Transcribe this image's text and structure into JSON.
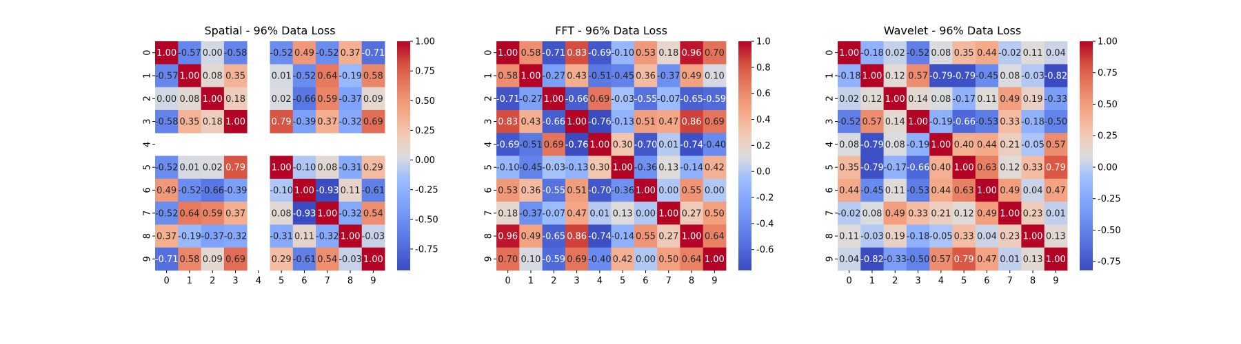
{
  "chart_data": [
    {
      "type": "heatmap",
      "title": "Spatial - 96% Data Loss",
      "xlabel": "",
      "ylabel": "",
      "x_ticks": [
        "0",
        "1",
        "2",
        "3",
        "4",
        "5",
        "6",
        "7",
        "8",
        "9"
      ],
      "y_ticks": [
        "0",
        "1",
        "2",
        "3",
        "4",
        "5",
        "6",
        "7",
        "8",
        "9"
      ],
      "values": [
        [
          1.0,
          -0.57,
          -0.0,
          -0.58,
          null,
          -0.52,
          0.49,
          -0.52,
          0.37,
          -0.71
        ],
        [
          -0.57,
          1.0,
          0.08,
          0.35,
          null,
          0.01,
          -0.52,
          0.64,
          -0.19,
          0.58
        ],
        [
          -0.0,
          0.08,
          1.0,
          0.18,
          null,
          0.02,
          -0.66,
          0.59,
          -0.37,
          0.09
        ],
        [
          -0.58,
          0.35,
          0.18,
          1.0,
          null,
          0.79,
          -0.39,
          0.37,
          -0.32,
          0.69
        ],
        [
          null,
          null,
          null,
          null,
          null,
          null,
          null,
          null,
          null,
          null
        ],
        [
          -0.52,
          0.01,
          0.02,
          0.79,
          null,
          1.0,
          -0.1,
          0.08,
          -0.31,
          0.29
        ],
        [
          0.49,
          -0.52,
          -0.66,
          -0.39,
          null,
          -0.1,
          1.0,
          -0.93,
          0.11,
          -0.61
        ],
        [
          -0.52,
          0.64,
          0.59,
          0.37,
          null,
          0.08,
          -0.93,
          1.0,
          -0.32,
          0.54
        ],
        [
          0.37,
          -0.19,
          -0.37,
          -0.32,
          null,
          -0.31,
          0.11,
          -0.32,
          1.0,
          -0.03
        ],
        [
          -0.71,
          0.58,
          0.09,
          0.69,
          null,
          0.29,
          -0.61,
          0.54,
          -0.03,
          1.0
        ]
      ],
      "vmin": -0.93,
      "vmax": 1.0,
      "colormap": "coolwarm",
      "colorbar_ticks": [
        "1.00",
        "0.75",
        "0.50",
        "0.25",
        "0.00",
        "-0.25",
        "-0.50",
        "-0.75"
      ],
      "colorbar_tick_values": [
        1.0,
        0.75,
        0.5,
        0.25,
        0.0,
        -0.25,
        -0.5,
        -0.75
      ]
    },
    {
      "type": "heatmap",
      "title": "FFT - 96% Data Loss",
      "xlabel": "",
      "ylabel": "",
      "x_ticks": [
        "0",
        "1",
        "2",
        "3",
        "4",
        "5",
        "6",
        "7",
        "8",
        "9"
      ],
      "y_ticks": [
        "0",
        "1",
        "2",
        "3",
        "4",
        "5",
        "6",
        "7",
        "8",
        "9"
      ],
      "values": [
        [
          1.0,
          0.58,
          -0.71,
          0.83,
          -0.69,
          -0.1,
          0.53,
          0.18,
          0.96,
          0.7
        ],
        [
          0.58,
          1.0,
          -0.27,
          0.43,
          -0.51,
          -0.45,
          0.36,
          -0.37,
          0.49,
          0.1
        ],
        [
          -0.71,
          -0.27,
          1.0,
          -0.66,
          0.69,
          -0.03,
          -0.55,
          -0.07,
          -0.65,
          -0.59
        ],
        [
          0.83,
          0.43,
          -0.66,
          1.0,
          -0.76,
          -0.13,
          0.51,
          0.47,
          0.86,
          0.69
        ],
        [
          -0.69,
          -0.51,
          0.69,
          -0.76,
          1.0,
          0.3,
          -0.7,
          0.01,
          -0.74,
          -0.4
        ],
        [
          -0.1,
          -0.45,
          -0.03,
          -0.13,
          0.3,
          1.0,
          -0.36,
          0.13,
          -0.14,
          0.42
        ],
        [
          0.53,
          0.36,
          -0.55,
          0.51,
          -0.7,
          -0.36,
          1.0,
          -0.0,
          0.55,
          0.0
        ],
        [
          0.18,
          -0.37,
          -0.07,
          0.47,
          0.01,
          0.13,
          -0.0,
          1.0,
          0.27,
          0.5
        ],
        [
          0.96,
          0.49,
          -0.65,
          0.86,
          -0.74,
          -0.14,
          0.55,
          0.27,
          1.0,
          0.64
        ],
        [
          0.7,
          0.1,
          -0.59,
          0.69,
          -0.4,
          0.42,
          0.0,
          0.5,
          0.64,
          1.0
        ]
      ],
      "vmin": -0.76,
      "vmax": 1.0,
      "colormap": "coolwarm",
      "colorbar_ticks": [
        "1.0",
        "0.8",
        "0.6",
        "0.4",
        "0.2",
        "0.0",
        "-0.2",
        "-0.4",
        "-0.6"
      ],
      "colorbar_tick_values": [
        1.0,
        0.8,
        0.6,
        0.4,
        0.2,
        0.0,
        -0.2,
        -0.4,
        -0.6
      ]
    },
    {
      "type": "heatmap",
      "title": "Wavelet - 96% Data Loss",
      "xlabel": "",
      "ylabel": "",
      "x_ticks": [
        "0",
        "1",
        "2",
        "3",
        "4",
        "5",
        "6",
        "7",
        "8",
        "9"
      ],
      "y_ticks": [
        "0",
        "1",
        "2",
        "3",
        "4",
        "5",
        "6",
        "7",
        "8",
        "9"
      ],
      "values": [
        [
          1.0,
          -0.18,
          0.02,
          -0.52,
          0.08,
          0.35,
          0.44,
          -0.02,
          0.11,
          0.04
        ],
        [
          -0.18,
          1.0,
          0.12,
          0.57,
          -0.79,
          -0.79,
          -0.45,
          0.08,
          -0.03,
          -0.82
        ],
        [
          0.02,
          0.12,
          1.0,
          0.14,
          0.08,
          -0.17,
          0.11,
          0.49,
          0.19,
          -0.33
        ],
        [
          -0.52,
          0.57,
          0.14,
          1.0,
          -0.19,
          -0.66,
          -0.53,
          0.33,
          -0.18,
          -0.5
        ],
        [
          0.08,
          -0.79,
          0.08,
          -0.19,
          1.0,
          0.4,
          0.44,
          0.21,
          -0.05,
          0.57
        ],
        [
          0.35,
          -0.79,
          -0.17,
          -0.66,
          0.4,
          1.0,
          0.63,
          0.12,
          0.33,
          0.79
        ],
        [
          0.44,
          -0.45,
          0.11,
          -0.53,
          0.44,
          0.63,
          1.0,
          0.49,
          0.04,
          0.47
        ],
        [
          -0.02,
          0.08,
          0.49,
          0.33,
          0.21,
          0.12,
          0.49,
          1.0,
          0.23,
          0.01
        ],
        [
          0.11,
          -0.03,
          0.19,
          -0.18,
          -0.05,
          0.33,
          0.04,
          0.23,
          1.0,
          0.13
        ],
        [
          0.04,
          -0.82,
          -0.33,
          -0.5,
          0.57,
          0.79,
          0.47,
          0.01,
          0.13,
          1.0
        ]
      ],
      "vmin": -0.82,
      "vmax": 1.0,
      "colormap": "coolwarm",
      "colorbar_ticks": [
        "1.00",
        "0.75",
        "0.50",
        "0.25",
        "0.00",
        "-0.25",
        "-0.50",
        "-0.75"
      ],
      "colorbar_tick_values": [
        1.0,
        0.75,
        0.5,
        0.25,
        0.0,
        -0.25,
        -0.5,
        -0.75
      ]
    }
  ]
}
